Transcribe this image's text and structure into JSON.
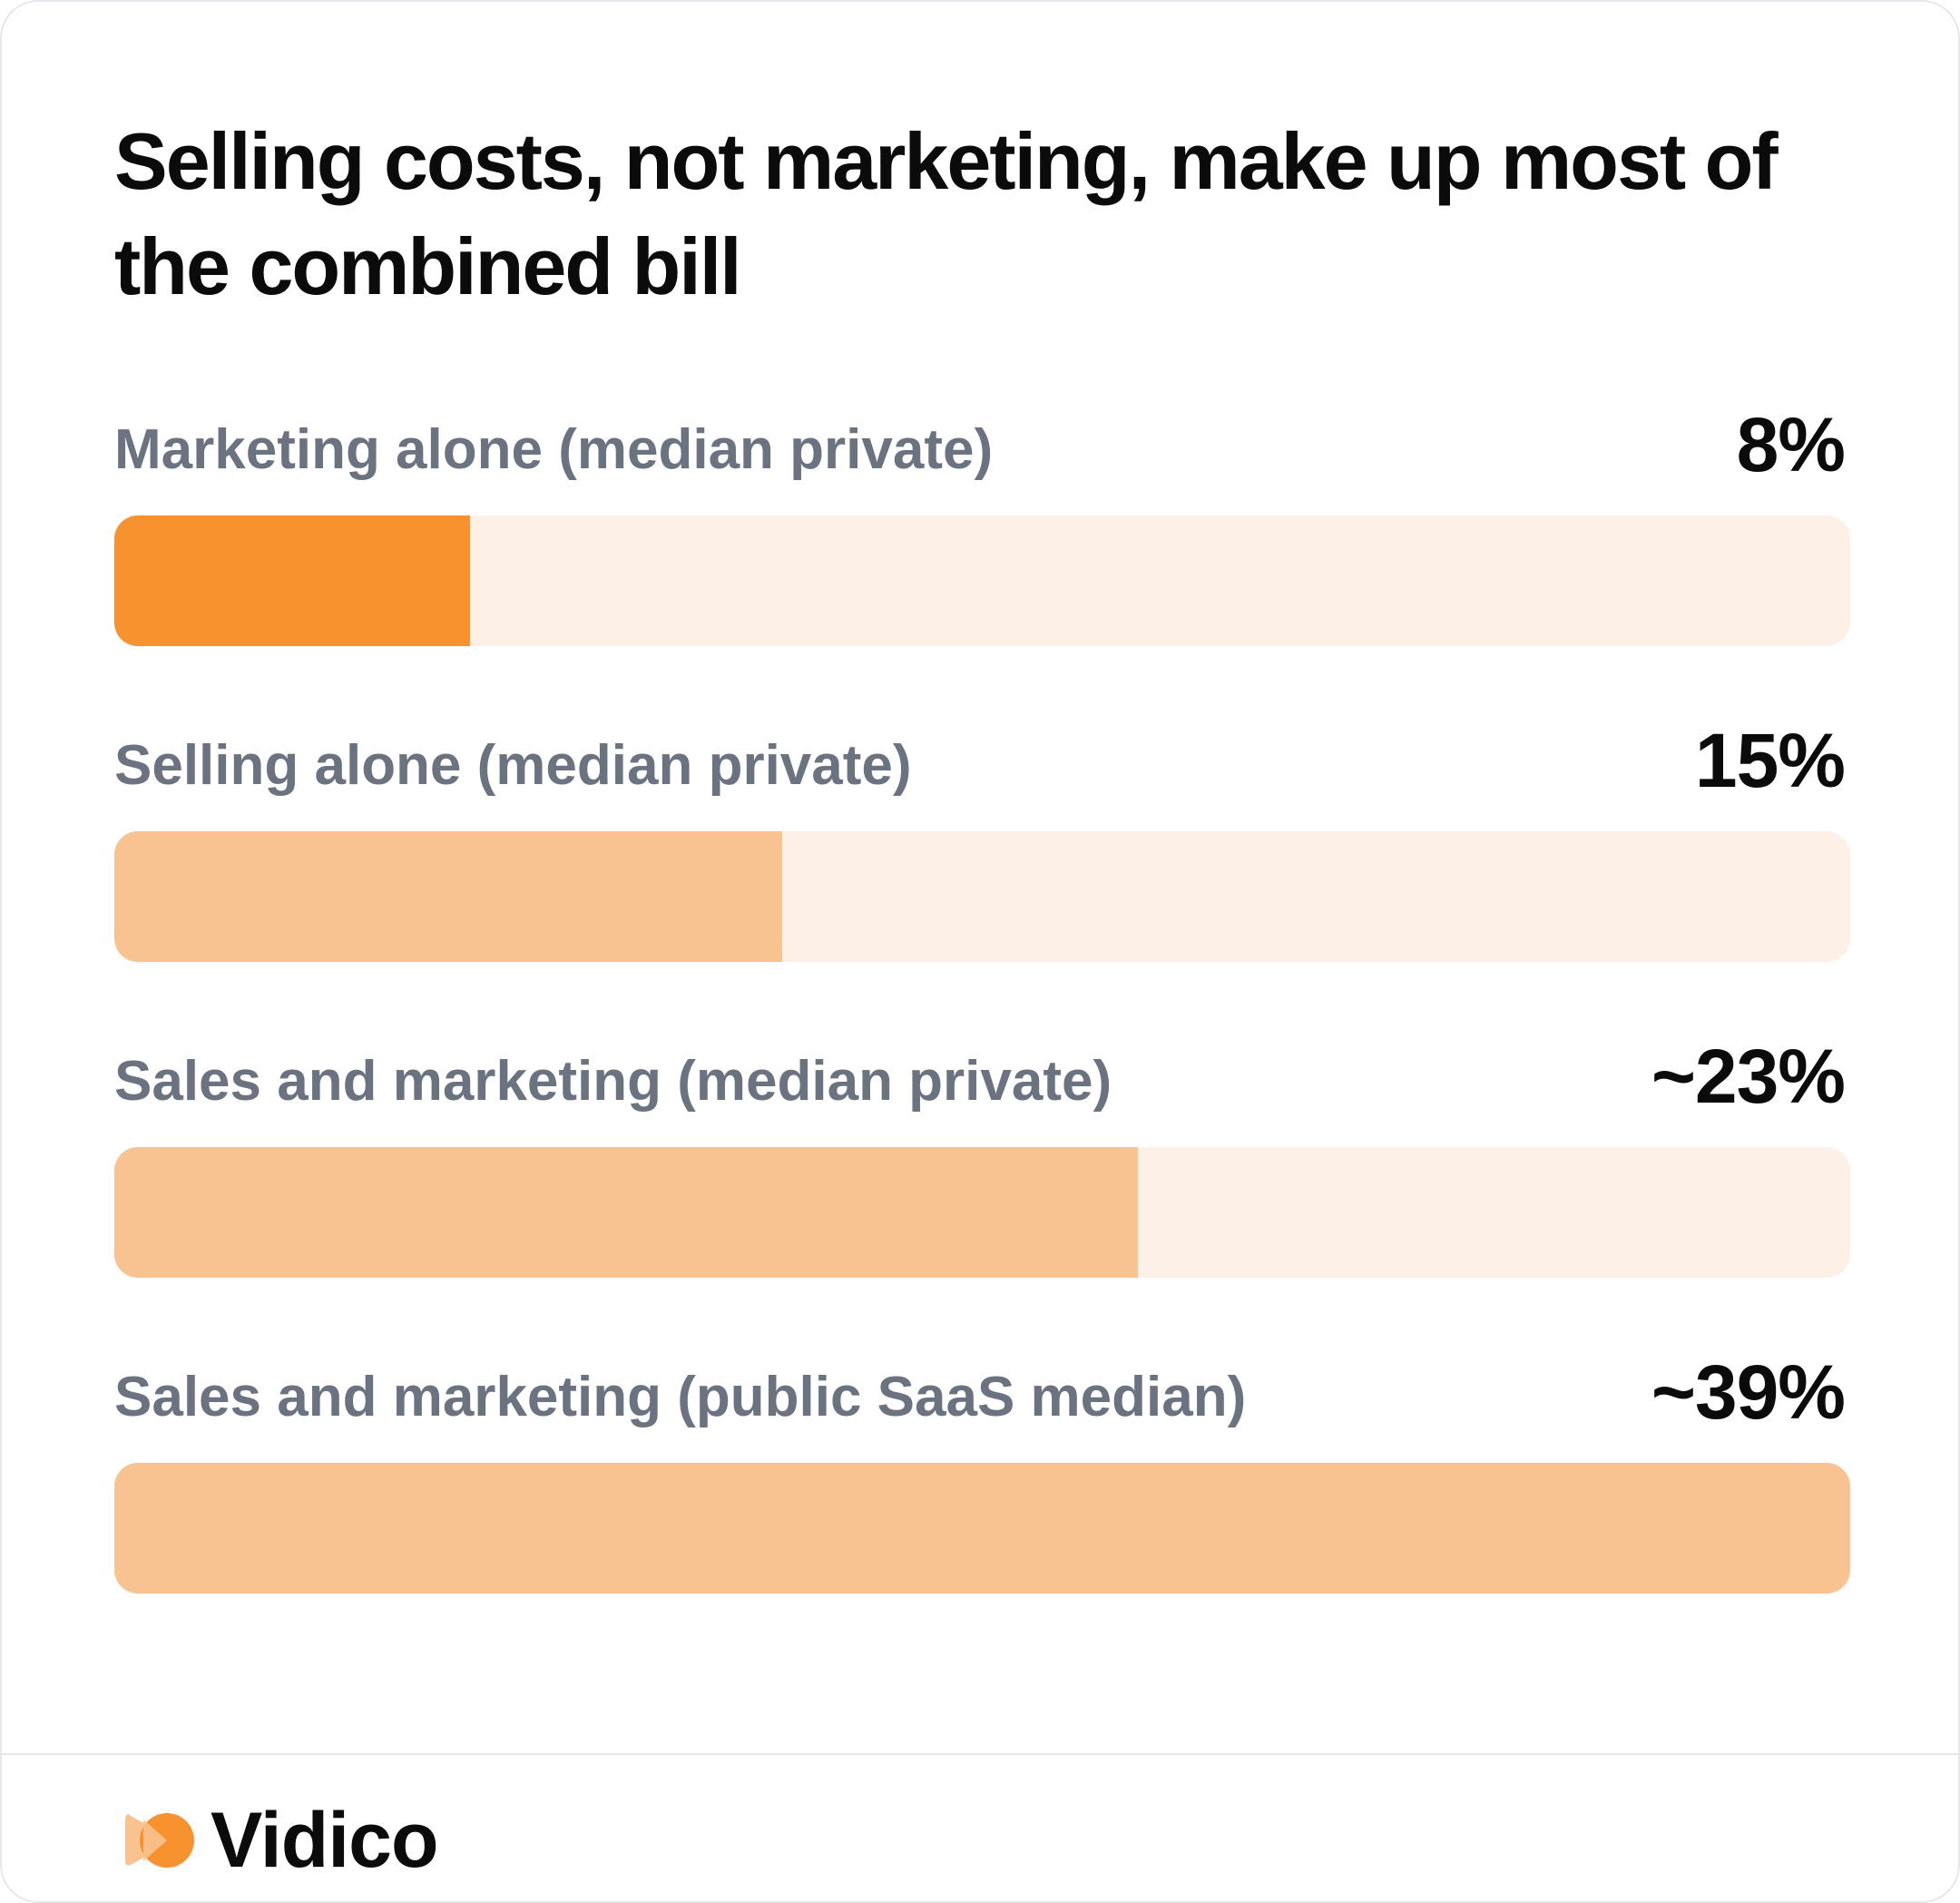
{
  "chart_data": {
    "type": "bar",
    "orientation": "horizontal",
    "title": "Selling costs, not marketing, make up most of the combined bill",
    "categories": [
      "Marketing alone (median private)",
      "Selling alone (median private)",
      "Sales and marketing (median private)",
      "Sales and marketing (public SaaS median)"
    ],
    "values": [
      8,
      15,
      23,
      39
    ],
    "value_labels": [
      "8%",
      "15%",
      "~23%",
      "~39%"
    ],
    "xlim": [
      0,
      39
    ],
    "grid": false,
    "legend": "none",
    "highlight_index": 0
  },
  "colors": {
    "highlight": "#f7922f",
    "bar": "#f8c291",
    "track": "#fdf0e6"
  },
  "footer": {
    "brand": "Vidico",
    "logo_icon": "vidico-logo-icon"
  }
}
